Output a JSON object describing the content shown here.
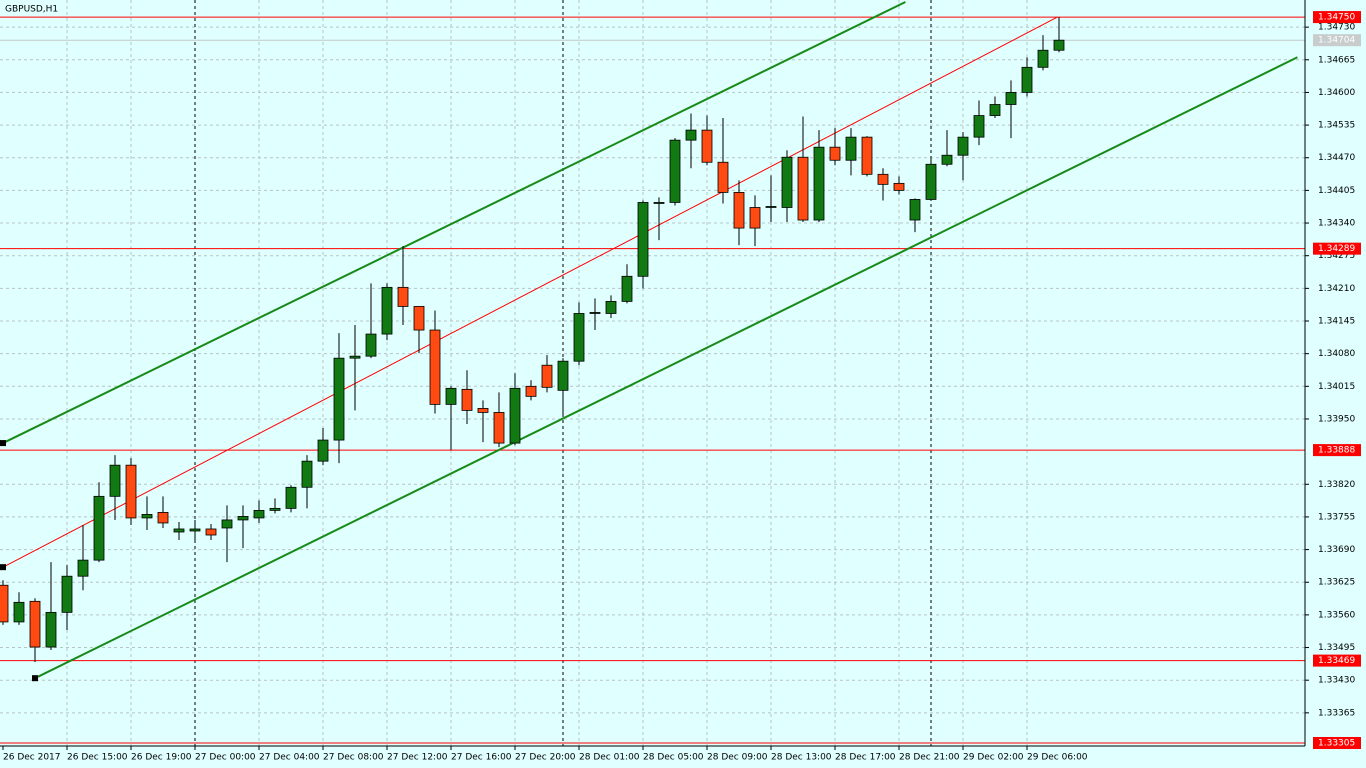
{
  "chart_data": {
    "type": "candlestick",
    "title": "GBPUSD,H1",
    "categories": [
      "26 Dec 2017",
      null,
      null,
      null,
      "26 Dec 15:00",
      null,
      null,
      null,
      "26 Dec 19:00",
      null,
      null,
      null,
      "27 Dec 00:00",
      null,
      null,
      null,
      "27 Dec 04:00",
      null,
      null,
      null,
      "27 Dec 08:00",
      null,
      null,
      null,
      "27 Dec 12:00",
      null,
      null,
      null,
      "27 Dec 16:00",
      null,
      null,
      null,
      "27 Dec 20:00",
      null,
      null,
      null,
      "28 Dec 01:00",
      null,
      null,
      null,
      "28 Dec 05:00",
      null,
      null,
      null,
      "28 Dec 09:00",
      null,
      null,
      null,
      "28 Dec 13:00",
      null,
      null,
      null,
      "28 Dec 17:00",
      null,
      null,
      null,
      "28 Dec 21:00",
      null,
      null,
      null,
      "29 Dec 02:00",
      null,
      null,
      null,
      "29 Dec 06:00",
      null,
      null
    ],
    "open": [
      1.33619,
      1.33546,
      1.33587,
      1.33496,
      1.33565,
      1.33637,
      1.33669,
      1.33796,
      1.33858,
      1.33753,
      1.33764,
      1.33725,
      1.33727,
      1.33731,
      1.33733,
      1.33749,
      1.33753,
      1.33768,
      1.33772,
      1.33814,
      1.33866,
      1.33908,
      1.34071,
      1.34075,
      1.34119,
      1.34212,
      1.34174,
      1.34127,
      1.33979,
      1.34009,
      1.33971,
      1.33963,
      1.33902,
      1.34015,
      1.34057,
      1.34007,
      1.34065,
      1.3416,
      1.3416,
      1.34184,
      1.34234,
      1.34379,
      1.34381,
      1.34505,
      1.34525,
      1.34461,
      1.34401,
      1.34371,
      1.34371,
      1.34371,
      1.34471,
      1.34346,
      1.34491,
      1.34465,
      1.34511,
      1.34437,
      1.34419,
      1.34346,
      1.34387,
      1.34457,
      1.34475,
      1.34511,
      1.34554,
      1.34576,
      1.346,
      1.3465,
      1.34684
    ],
    "high": [
      1.33629,
      1.33605,
      1.33593,
      1.33665,
      1.33659,
      1.33739,
      1.33824,
      1.33878,
      1.33872,
      1.33796,
      1.33796,
      1.33745,
      1.33749,
      1.33741,
      1.33778,
      1.33778,
      1.33788,
      1.33792,
      1.33818,
      1.33878,
      1.33932,
      1.34121,
      1.34137,
      1.3422,
      1.3422,
      1.34294,
      1.34174,
      1.34166,
      1.34015,
      1.34047,
      1.33987,
      1.34003,
      1.34041,
      1.34027,
      1.34077,
      1.34071,
      1.34182,
      1.3419,
      1.34196,
      1.34258,
      1.34385,
      1.34391,
      1.34509,
      1.34558,
      1.34554,
      1.34549,
      1.34425,
      1.34395,
      1.34435,
      1.34485,
      1.34552,
      1.34525,
      1.34529,
      1.34529,
      1.34513,
      1.34449,
      1.34433,
      1.34389,
      1.34469,
      1.34525,
      1.34521,
      1.34584,
      1.34592,
      1.34624,
      1.3467,
      1.34714,
      1.3475
    ],
    "low": [
      1.3354,
      1.3354,
      1.33466,
      1.3349,
      1.3353,
      1.33609,
      1.33665,
      1.33749,
      1.33739,
      1.33729,
      1.33733,
      1.33709,
      1.33709,
      1.33709,
      1.33665,
      1.33693,
      1.33743,
      1.33762,
      1.33764,
      1.33772,
      1.33858,
      1.33862,
      1.33967,
      1.34071,
      1.34107,
      1.34137,
      1.34081,
      1.33961,
      1.33888,
      1.3394,
      1.33904,
      1.33894,
      1.33898,
      1.33987,
      1.34003,
      1.33957,
      1.34057,
      1.34127,
      1.34151,
      1.3418,
      1.3421,
      1.34306,
      1.34375,
      1.34449,
      1.34455,
      1.34379,
      1.34296,
      1.34294,
      1.34342,
      1.34342,
      1.34342,
      1.34342,
      1.34455,
      1.34435,
      1.34433,
      1.34385,
      1.34397,
      1.34322,
      1.34385,
      1.34453,
      1.34425,
      1.34495,
      1.34549,
      1.34509,
      1.34592,
      1.34644,
      1.3468
    ],
    "close": [
      1.33546,
      1.33585,
      1.33496,
      1.33565,
      1.33637,
      1.33669,
      1.33796,
      1.33858,
      1.33753,
      1.3376,
      1.33743,
      1.33731,
      1.33731,
      1.33719,
      1.33749,
      1.33756,
      1.33768,
      1.33772,
      1.33814,
      1.33866,
      1.33908,
      1.34071,
      1.34075,
      1.34119,
      1.34212,
      1.34174,
      1.34127,
      1.33979,
      1.34011,
      1.33967,
      1.33963,
      1.33902,
      1.34011,
      1.33995,
      1.34013,
      1.34065,
      1.3416,
      1.34162,
      1.34184,
      1.34234,
      1.34381,
      1.34381,
      1.34505,
      1.34525,
      1.34461,
      1.34401,
      1.3433,
      1.3433,
      1.34373,
      1.34471,
      1.34346,
      1.34491,
      1.34465,
      1.34511,
      1.34437,
      1.34417,
      1.34405,
      1.34387,
      1.34457,
      1.34475,
      1.34511,
      1.34554,
      1.34576,
      1.346,
      1.3465,
      1.34684,
      1.34704
    ],
    "up_color": "#127a12",
    "down_color": "#ff4a12",
    "ylim": [
      1.33299,
      1.34784
    ],
    "yticks": [
      {
        "value": 1.3473,
        "label": "1.34730"
      },
      1.34665,
      {
        "value": 1.346,
        "label": "1.34600"
      },
      1.34535,
      {
        "value": 1.3447,
        "label": "1.34470"
      },
      1.34405,
      {
        "value": 1.3434,
        "label": "1.34340"
      },
      1.34275,
      {
        "value": 1.3421,
        "label": "1.34210"
      },
      1.34145,
      {
        "value": 1.3408,
        "label": "1.34080"
      },
      1.34015,
      {
        "value": 1.3395,
        "label": "1.33950"
      },
      {
        "value": 1.3382,
        "label": "1.33820"
      },
      1.33755,
      {
        "value": 1.3369,
        "label": "1.33690"
      },
      1.33625,
      {
        "value": 1.3356,
        "label": "1.33560"
      },
      1.33495,
      {
        "value": 1.3343,
        "label": "1.33430"
      },
      1.33365
    ],
    "grid": true,
    "levels": [
      {
        "value": 1.3475,
        "label": "1.34750"
      },
      1.34289,
      1.33888,
      1.33469,
      1.33305
    ],
    "level_color": "#ff0000",
    "bid": 1.34704,
    "trendlines": [
      {
        "x": [
          0,
          56.4
        ],
        "y": [
          1.33902,
          1.3478
        ],
        "color": "#188a18",
        "width": 2
      },
      {
        "x": [
          2,
          80.9
        ],
        "y": [
          1.33434,
          1.3467
        ],
        "color": "#188a18",
        "width": 2
      },
      {
        "x": [
          0,
          65.9
        ],
        "y": [
          1.33655,
          1.3475
        ],
        "color": "#ff0000",
        "width": 1
      }
    ]
  }
}
